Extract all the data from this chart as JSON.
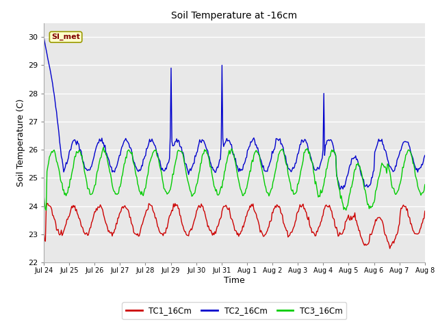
{
  "title": "Soil Temperature at -16cm",
  "xlabel": "Time",
  "ylabel": "Soil Temperature (C)",
  "ylim": [
    22.0,
    30.5
  ],
  "yticks": [
    22.0,
    23.0,
    24.0,
    25.0,
    26.0,
    27.0,
    28.0,
    29.0,
    30.0
  ],
  "bg_color": "#e8e8e8",
  "plot_bg_color": "#e8e8e8",
  "line_colors": {
    "TC1": "#cc0000",
    "TC2": "#0000cc",
    "TC3": "#00cc00"
  },
  "legend_labels": [
    "TC1_16Cm",
    "TC2_16Cm",
    "TC3_16Cm"
  ],
  "annotation_text": "SI_met",
  "x_tick_labels": [
    "Jul 24",
    "Jul 25",
    "Jul 26",
    "Jul 27",
    "Jul 28",
    "Jul 29",
    "Jul 30",
    "Jul 31",
    "Aug 1",
    "Aug 2",
    "Aug 3",
    "Aug 4",
    "Aug 5",
    "Aug 6",
    "Aug 7",
    "Aug 8"
  ],
  "n_points": 480
}
